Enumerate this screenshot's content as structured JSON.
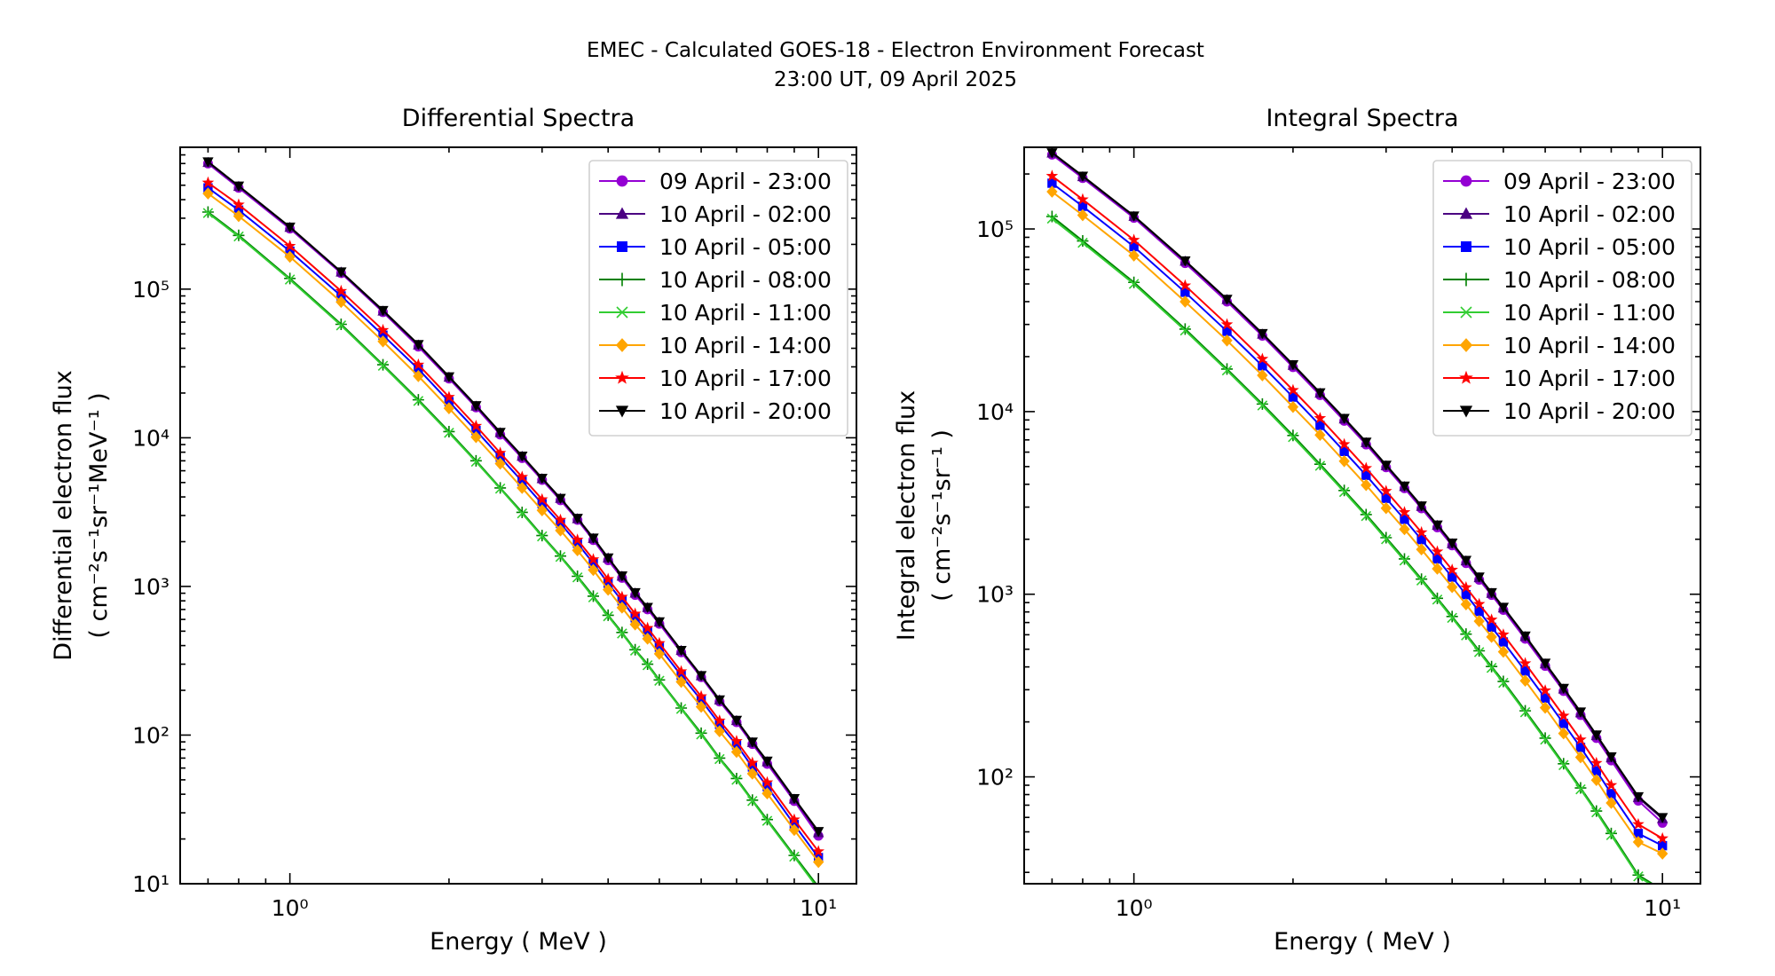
{
  "figure": {
    "title_line1": "EMEC - Calculated GOES-18 - Electron Environment Forecast",
    "title_line2": "23:00 UT, 09 April 2025"
  },
  "colors": {
    "09 April - 23:00": "#9400D3",
    "10 April - 02:00": "#4B0082",
    "10 April - 05:00": "#0000FF",
    "10 April - 08:00": "#008000",
    "10 April - 11:00": "#32CD32",
    "10 April - 14:00": "#FFA500",
    "10 April - 17:00": "#FF0000",
    "10 April - 20:00": "#000000"
  },
  "chart_data": [
    {
      "type": "line",
      "title": "Differential Spectra",
      "xlabel": "Energy ( MeV )",
      "ylabel_line1": "Differential electron flux",
      "ylabel_line2": "( cm⁻²s⁻¹sr⁻¹MeV⁻¹ )",
      "xscale": "log",
      "yscale": "log",
      "xlim": [
        0.62,
        11.8
      ],
      "ylim": [
        10,
        900000
      ],
      "xticks": [
        {
          "value": 1,
          "label": "10⁰"
        },
        {
          "value": 10,
          "label": "10¹"
        }
      ],
      "yticks": [
        {
          "value": 10,
          "label": "10¹"
        },
        {
          "value": 100,
          "label": "10²"
        },
        {
          "value": 1000,
          "label": "10³"
        },
        {
          "value": 10000,
          "label": "10⁴"
        },
        {
          "value": 100000,
          "label": "10⁵"
        }
      ],
      "legend_position": "top-right",
      "x": [
        0.7,
        0.8,
        1.0,
        1.25,
        1.5,
        1.75,
        2.0,
        2.25,
        2.5,
        2.75,
        3.0,
        3.25,
        3.5,
        3.75,
        4.0,
        4.25,
        4.5,
        4.75,
        5.0,
        5.5,
        6.0,
        6.5,
        7.0,
        7.5,
        8.0,
        9.0,
        10.0
      ],
      "series": [
        {
          "name": "09 April - 23:00",
          "marker": "circle",
          "values": [
            700000,
            480000,
            255000,
            128000,
            70000,
            41000,
            25000,
            16000,
            10500,
            7300,
            5200,
            3800,
            2800,
            2050,
            1500,
            1140,
            875,
            700,
            560,
            360,
            245,
            168,
            122,
            87,
            64,
            36,
            21
          ]
        },
        {
          "name": "10 April - 02:00",
          "marker": "triangle-up",
          "values": [
            710000,
            490000,
            260000,
            130000,
            71000,
            42000,
            25500,
            16300,
            10800,
            7500,
            5300,
            3900,
            2850,
            2100,
            1550,
            1170,
            900,
            720,
            575,
            370,
            250,
            172,
            125,
            89,
            66,
            37,
            22
          ]
        },
        {
          "name": "10 April - 05:00",
          "marker": "square",
          "values": [
            480000,
            340000,
            180000,
            90000,
            49000,
            29000,
            17500,
            11200,
            7400,
            5100,
            3600,
            2650,
            1950,
            1430,
            1050,
            800,
            615,
            495,
            390,
            252,
            172,
            118,
            86,
            61,
            45,
            25,
            15
          ]
        },
        {
          "name": "10 April - 08:00",
          "marker": "plus",
          "values": [
            330000,
            230000,
            118000,
            58000,
            31000,
            18000,
            11000,
            7000,
            4600,
            3150,
            2200,
            1600,
            1170,
            860,
            640,
            490,
            375,
            300,
            235,
            152,
            103,
            70,
            51,
            36.5,
            27,
            15.5,
            9.5
          ]
        },
        {
          "name": "10 April - 11:00",
          "marker": "x",
          "values": [
            325000,
            226000,
            116000,
            57000,
            30500,
            17700,
            10800,
            6900,
            4550,
            3100,
            2170,
            1580,
            1150,
            845,
            630,
            482,
            370,
            295,
            232,
            150,
            101,
            69,
            50,
            36,
            26.5,
            15.2,
            9.2
          ]
        },
        {
          "name": "10 April - 14:00",
          "marker": "diamond",
          "values": [
            440000,
            310000,
            165000,
            82000,
            44500,
            26000,
            15800,
            10100,
            6700,
            4600,
            3250,
            2380,
            1750,
            1290,
            950,
            720,
            555,
            445,
            352,
            228,
            155,
            106,
            77,
            55,
            40.5,
            23,
            14
          ]
        },
        {
          "name": "10 April - 17:00",
          "marker": "star",
          "values": [
            520000,
            370000,
            195000,
            97000,
            53000,
            31000,
            18800,
            12000,
            7900,
            5450,
            3850,
            2800,
            2060,
            1520,
            1120,
            850,
            655,
            525,
            415,
            268,
            182,
            125,
            91,
            65,
            48,
            27,
            16.5
          ]
        },
        {
          "name": "10 April - 20:00",
          "marker": "triangle-down",
          "values": [
            720000,
            495000,
            262000,
            131000,
            72000,
            42500,
            25800,
            16500,
            10900,
            7550,
            5350,
            3920,
            2880,
            2120,
            1560,
            1180,
            910,
            725,
            580,
            372,
            252,
            173,
            126,
            90,
            67,
            37.5,
            22.5
          ]
        }
      ]
    },
    {
      "type": "line",
      "title": "Integral Spectra",
      "xlabel": "Energy ( MeV )",
      "ylabel_line1": "Integral electron flux",
      "ylabel_line2": "( cm⁻²s⁻¹sr⁻¹ )",
      "xscale": "log",
      "yscale": "log",
      "xlim": [
        0.62,
        11.8
      ],
      "ylim": [
        26,
        280000
      ],
      "xticks": [
        {
          "value": 1,
          "label": "10⁰"
        },
        {
          "value": 10,
          "label": "10¹"
        }
      ],
      "yticks": [
        {
          "value": 100,
          "label": "10²"
        },
        {
          "value": 1000,
          "label": "10³"
        },
        {
          "value": 10000,
          "label": "10⁴"
        },
        {
          "value": 100000,
          "label": "10⁵"
        }
      ],
      "legend_position": "top-right",
      "x": [
        0.7,
        0.8,
        1.0,
        1.25,
        1.5,
        1.75,
        2.0,
        2.25,
        2.5,
        2.75,
        3.0,
        3.25,
        3.5,
        3.75,
        4.0,
        4.25,
        4.5,
        4.75,
        5.0,
        5.5,
        6.0,
        6.5,
        7.0,
        7.5,
        8.0,
        9.0,
        10.0
      ],
      "series": [
        {
          "name": "09 April - 23:00",
          "marker": "circle",
          "values": [
            255000,
            190000,
            115000,
            65000,
            40000,
            26000,
            17500,
            12300,
            8900,
            6600,
            4950,
            3800,
            2950,
            2320,
            1850,
            1480,
            1200,
            990,
            820,
            570,
            405,
            295,
            218,
            163,
            123,
            74,
            56
          ]
        },
        {
          "name": "10 April - 02:00",
          "marker": "triangle-up",
          "values": [
            260000,
            193000,
            117000,
            66500,
            41000,
            26500,
            17900,
            12600,
            9100,
            6750,
            5050,
            3880,
            3020,
            2380,
            1890,
            1520,
            1230,
            1010,
            840,
            585,
            415,
            302,
            224,
            168,
            127,
            77,
            59
          ]
        },
        {
          "name": "10 April - 05:00",
          "marker": "square",
          "values": [
            178000,
            133000,
            80000,
            45000,
            27500,
            17800,
            12000,
            8400,
            6050,
            4480,
            3350,
            2570,
            1990,
            1560,
            1240,
            995,
            805,
            660,
            548,
            380,
            270,
            196,
            145,
            108,
            81,
            49,
            42
          ]
        },
        {
          "name": "10 April - 08:00",
          "marker": "plus",
          "values": [
            117000,
            86000,
            51000,
            28300,
            17100,
            11000,
            7400,
            5150,
            3700,
            2730,
            2040,
            1560,
            1210,
            950,
            755,
            605,
            490,
            402,
            333,
            230,
            163,
            118,
            87,
            65,
            49,
            29,
            24
          ]
        },
        {
          "name": "10 April - 11:00",
          "marker": "x",
          "values": [
            114000,
            84000,
            50000,
            27800,
            16800,
            10800,
            7250,
            5050,
            3630,
            2680,
            2000,
            1530,
            1190,
            935,
            742,
            595,
            482,
            395,
            327,
            226,
            160,
            116,
            85.5,
            64,
            48,
            28.5,
            23.5
          ]
        },
        {
          "name": "10 April - 14:00",
          "marker": "diamond",
          "values": [
            160000,
            119000,
            71500,
            40000,
            24500,
            15800,
            10600,
            7450,
            5350,
            3960,
            2960,
            2270,
            1760,
            1380,
            1095,
            880,
            712,
            584,
            484,
            336,
            239,
            173,
            128,
            96,
            72,
            44,
            38
          ]
        },
        {
          "name": "10 April - 17:00",
          "marker": "star",
          "values": [
            195000,
            145000,
            87000,
            49000,
            30000,
            19400,
            13100,
            9200,
            6620,
            4900,
            3670,
            2810,
            2180,
            1710,
            1360,
            1090,
            883,
            725,
            601,
            418,
            297,
            216,
            160,
            119,
            90,
            55,
            46
          ]
        },
        {
          "name": "10 April - 20:00",
          "marker": "triangle-down",
          "values": [
            262000,
            195000,
            118000,
            67000,
            41300,
            26800,
            18100,
            12700,
            9200,
            6820,
            5100,
            3920,
            3050,
            2400,
            1910,
            1535,
            1245,
            1022,
            850,
            592,
            420,
            306,
            227,
            170,
            129,
            78,
            60
          ]
        }
      ]
    }
  ]
}
